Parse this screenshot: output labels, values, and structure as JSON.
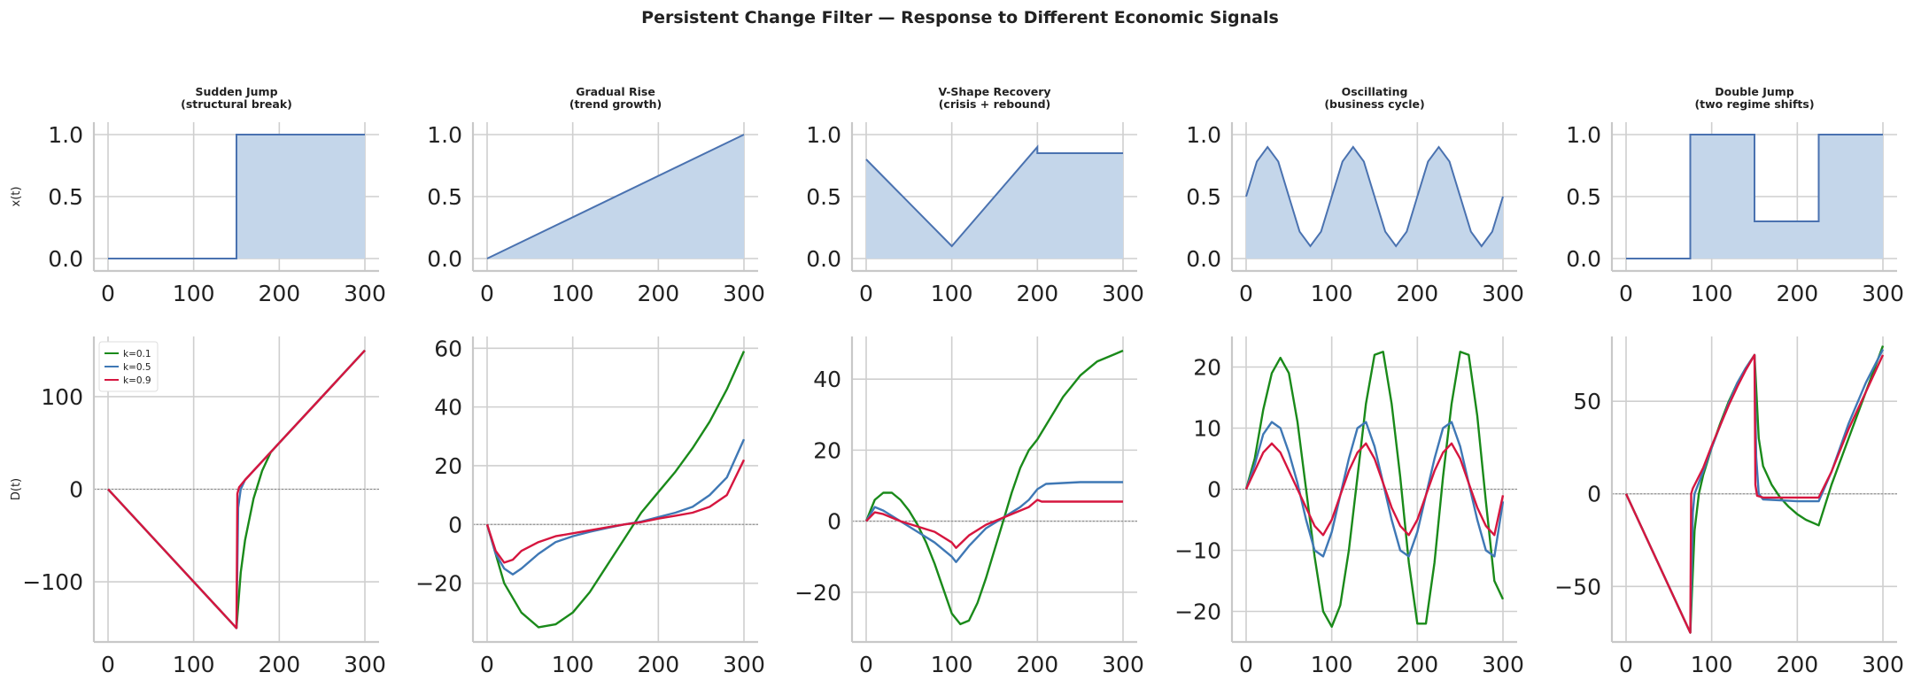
{
  "title": "Persistent Change Filter — Response to Different Economic Signals",
  "colors": {
    "signal_line": "#4a72b0",
    "signal_fill": "#c4d6ea",
    "k01": "#1a8a1a",
    "k05": "#3f78b5",
    "k09": "#d6163f",
    "grid": "#cfcfcf",
    "zero": "#888888"
  },
  "chart_data": [
    {
      "type": "area",
      "row": 0,
      "col": 0,
      "title_lines": [
        "Sudden Jump",
        "(structural break)"
      ],
      "ylabel": "x(t)",
      "xlim": [
        0,
        300
      ],
      "ylim": [
        -0.1,
        1.1
      ],
      "xticks": [
        0,
        100,
        200,
        300
      ],
      "yticks": [
        "0.0",
        "0.5",
        "1.0"
      ],
      "ytick_values": [
        0,
        0.5,
        1
      ],
      "series": [
        {
          "x": [
            0,
            150,
            150,
            300
          ],
          "y": [
            0,
            0,
            1,
            1
          ]
        }
      ]
    },
    {
      "type": "area",
      "row": 0,
      "col": 1,
      "title_lines": [
        "Gradual Rise",
        "(trend growth)"
      ],
      "ylabel": "",
      "xlim": [
        0,
        300
      ],
      "ylim": [
        -0.1,
        1.1
      ],
      "xticks": [
        0,
        100,
        200,
        300
      ],
      "yticks": [
        "0.0",
        "0.5",
        "1.0"
      ],
      "ytick_values": [
        0,
        0.5,
        1
      ],
      "series": [
        {
          "x": [
            0,
            300
          ],
          "y": [
            0,
            1
          ]
        }
      ]
    },
    {
      "type": "area",
      "row": 0,
      "col": 2,
      "title_lines": [
        "V-Shape Recovery",
        "(crisis + rebound)"
      ],
      "ylabel": "",
      "xlim": [
        0,
        300
      ],
      "ylim": [
        -0.1,
        1.1
      ],
      "xticks": [
        0,
        100,
        200,
        300
      ],
      "yticks": [
        "0.0",
        "0.5",
        "1.0"
      ],
      "ytick_values": [
        0,
        0.5,
        1
      ],
      "series": [
        {
          "x": [
            0,
            100,
            200,
            200,
            300
          ],
          "y": [
            0.8,
            0.1,
            0.9,
            0.85,
            0.85
          ]
        }
      ]
    },
    {
      "type": "area",
      "row": 0,
      "col": 3,
      "title_lines": [
        "Oscillating",
        "(business cycle)"
      ],
      "ylabel": "",
      "xlim": [
        0,
        300
      ],
      "ylim": [
        -0.1,
        1.1
      ],
      "xticks": [
        0,
        100,
        200,
        300
      ],
      "yticks": [
        "0.0",
        "0.5",
        "1.0"
      ],
      "ytick_values": [
        0,
        0.5,
        1
      ],
      "series": [
        {
          "x": [
            0,
            12.5,
            25,
            37.5,
            50,
            62.5,
            75,
            87.5,
            100,
            112.5,
            125,
            137.5,
            150,
            162.5,
            175,
            187.5,
            200,
            212.5,
            225,
            237.5,
            250,
            262.5,
            275,
            287.5,
            300
          ],
          "y": [
            0.5,
            0.783,
            0.9,
            0.783,
            0.5,
            0.217,
            0.1,
            0.217,
            0.5,
            0.783,
            0.9,
            0.783,
            0.5,
            0.217,
            0.1,
            0.217,
            0.5,
            0.783,
            0.9,
            0.783,
            0.5,
            0.217,
            0.1,
            0.217,
            0.5
          ]
        }
      ]
    },
    {
      "type": "area",
      "row": 0,
      "col": 4,
      "title_lines": [
        "Double Jump",
        "(two regime shifts)"
      ],
      "ylabel": "",
      "xlim": [
        0,
        300
      ],
      "ylim": [
        -0.1,
        1.1
      ],
      "xticks": [
        0,
        100,
        200,
        300
      ],
      "yticks": [
        "0.0",
        "0.5",
        "1.0"
      ],
      "ytick_values": [
        0,
        0.5,
        1
      ],
      "series": [
        {
          "x": [
            0,
            75,
            75,
            150,
            150,
            225,
            225,
            300
          ],
          "y": [
            0,
            0,
            1,
            1,
            0.3,
            0.3,
            1,
            1
          ]
        }
      ]
    },
    {
      "type": "line",
      "row": 1,
      "col": 0,
      "ylabel": "D(t)",
      "xlim": [
        0,
        300
      ],
      "ylim": [
        -165,
        165
      ],
      "xticks": [
        0,
        100,
        200,
        300
      ],
      "yticks": [
        "−100",
        "0",
        "100"
      ],
      "ytick_values": [
        -100,
        0,
        100
      ],
      "legend": {
        "placement": "upper-left",
        "entries": [
          "k=0.1",
          "k=0.5",
          "k=0.9"
        ]
      },
      "series": [
        {
          "name": "k=0.1",
          "x": [
            0,
            150,
            150,
            155,
            160,
            170,
            180,
            190,
            200,
            250,
            300
          ],
          "y": [
            0,
            -150,
            -150,
            -90,
            -55,
            -10,
            20,
            40,
            50,
            100,
            150
          ]
        },
        {
          "name": "k=0.5",
          "x": [
            0,
            150,
            150,
            152,
            155,
            160,
            200,
            250,
            300
          ],
          "y": [
            0,
            -150,
            -150,
            -20,
            0,
            10,
            50,
            100,
            150
          ]
        },
        {
          "name": "k=0.9",
          "x": [
            0,
            150,
            150,
            151,
            153,
            160,
            200,
            250,
            300
          ],
          "y": [
            0,
            -150,
            -150,
            -5,
            2,
            10,
            50,
            100,
            150
          ]
        }
      ]
    },
    {
      "type": "line",
      "row": 1,
      "col": 1,
      "ylabel": "",
      "xlim": [
        0,
        300
      ],
      "ylim": [
        -40,
        64
      ],
      "xticks": [
        0,
        100,
        200,
        300
      ],
      "yticks": [
        "−20",
        "0",
        "20",
        "40",
        "60"
      ],
      "ytick_values": [
        -20,
        0,
        20,
        40,
        60
      ],
      "series": [
        {
          "name": "k=0.1",
          "x": [
            0,
            20,
            40,
            60,
            80,
            100,
            120,
            140,
            160,
            180,
            200,
            220,
            240,
            260,
            280,
            300
          ],
          "y": [
            0,
            -20,
            -30,
            -35,
            -34,
            -30,
            -23,
            -14,
            -5,
            4,
            11,
            18,
            26,
            35,
            46,
            59
          ]
        },
        {
          "name": "k=0.5",
          "x": [
            0,
            10,
            20,
            30,
            40,
            60,
            80,
            100,
            120,
            140,
            160,
            180,
            200,
            220,
            240,
            260,
            280,
            300
          ],
          "y": [
            0,
            -10,
            -15,
            -17,
            -15,
            -10,
            -6,
            -4,
            -2.5,
            -1.2,
            0,
            1,
            2.5,
            4,
            6,
            10,
            16,
            29
          ]
        },
        {
          "name": "k=0.9",
          "x": [
            0,
            10,
            20,
            30,
            40,
            60,
            80,
            100,
            120,
            140,
            160,
            180,
            200,
            220,
            240,
            260,
            280,
            300
          ],
          "y": [
            0,
            -9,
            -13,
            -12,
            -9,
            -6,
            -4,
            -3,
            -2,
            -1,
            0,
            0.8,
            2,
            3,
            4,
            6,
            10,
            22
          ]
        }
      ]
    },
    {
      "type": "line",
      "row": 1,
      "col": 2,
      "ylabel": "",
      "xlim": [
        0,
        300
      ],
      "ylim": [
        -34,
        52
      ],
      "xticks": [
        0,
        100,
        200,
        300
      ],
      "yticks": [
        "−20",
        "0",
        "20",
        "40"
      ],
      "ytick_values": [
        -20,
        0,
        20,
        40
      ],
      "series": [
        {
          "name": "k=0.1",
          "x": [
            0,
            10,
            20,
            30,
            40,
            50,
            60,
            70,
            80,
            90,
            100,
            110,
            120,
            130,
            140,
            150,
            160,
            170,
            180,
            190,
            200,
            210,
            220,
            230,
            240,
            250,
            260,
            270,
            280,
            290,
            300
          ],
          "y": [
            0,
            6,
            8,
            8,
            6,
            3,
            -1,
            -6,
            -12,
            -19,
            -26,
            -29,
            -28,
            -23,
            -16,
            -8,
            0,
            8,
            15,
            20,
            23,
            27,
            31,
            35,
            38,
            41,
            43,
            45,
            46,
            47,
            48
          ]
        },
        {
          "name": "k=0.5",
          "x": [
            0,
            10,
            20,
            40,
            60,
            80,
            100,
            105,
            120,
            140,
            160,
            180,
            190,
            200,
            210,
            250,
            300
          ],
          "y": [
            0,
            4,
            3,
            0,
            -3,
            -6,
            -10,
            -11.5,
            -7,
            -2,
            1,
            4,
            6,
            9,
            10.5,
            11,
            11
          ]
        },
        {
          "name": "k=0.9",
          "x": [
            0,
            10,
            20,
            40,
            60,
            80,
            100,
            105,
            120,
            140,
            160,
            180,
            190,
            200,
            205,
            250,
            300
          ],
          "y": [
            0,
            2.5,
            2,
            0,
            -1.5,
            -3,
            -6,
            -7.5,
            -4,
            -1,
            1,
            3,
            4,
            6,
            5.5,
            5.5,
            5.5
          ]
        }
      ]
    },
    {
      "type": "line",
      "row": 1,
      "col": 3,
      "ylabel": "",
      "xlim": [
        0,
        300
      ],
      "ylim": [
        -25,
        25
      ],
      "xticks": [
        0,
        100,
        200,
        300
      ],
      "yticks": [
        "−20",
        "−10",
        "0",
        "10",
        "20"
      ],
      "ytick_values": [
        -20,
        -10,
        0,
        10,
        20
      ],
      "series": [
        {
          "name": "k=0.1",
          "x": [
            0,
            10,
            20,
            30,
            40,
            50,
            60,
            70,
            80,
            90,
            100,
            110,
            120,
            130,
            140,
            150,
            160,
            170,
            180,
            190,
            200,
            210,
            220,
            230,
            240,
            250,
            260,
            270,
            280,
            290,
            300
          ],
          "y": [
            0,
            5,
            13,
            19,
            21.5,
            19,
            11,
            0,
            -11,
            -20,
            -22.5,
            -19,
            -10,
            2,
            14,
            22,
            22.5,
            14,
            2,
            -12,
            -22,
            -22,
            -12,
            2,
            14,
            22.5,
            22,
            12,
            -2,
            -15,
            -18
          ]
        },
        {
          "name": "k=0.5",
          "x": [
            0,
            10,
            20,
            30,
            40,
            50,
            60,
            70,
            80,
            90,
            100,
            110,
            120,
            130,
            140,
            150,
            160,
            170,
            180,
            190,
            200,
            210,
            220,
            230,
            240,
            250,
            260,
            270,
            280,
            290,
            300
          ],
          "y": [
            0,
            4,
            9,
            11,
            10,
            6,
            1,
            -5,
            -10,
            -11,
            -7,
            -1,
            5,
            10,
            11,
            7,
            1,
            -5,
            -10,
            -11,
            -7,
            -1,
            5,
            10,
            11,
            7,
            1,
            -5,
            -10,
            -11,
            -2
          ]
        },
        {
          "name": "k=0.9",
          "x": [
            0,
            10,
            20,
            30,
            40,
            50,
            60,
            70,
            80,
            90,
            100,
            110,
            120,
            130,
            140,
            150,
            160,
            170,
            180,
            190,
            200,
            210,
            220,
            230,
            240,
            250,
            260,
            270,
            280,
            290,
            300
          ],
          "y": [
            0,
            3,
            6,
            7.5,
            6,
            3,
            0,
            -3,
            -6,
            -7.5,
            -5,
            -1,
            3,
            6,
            7.5,
            5,
            1,
            -3,
            -6,
            -7.5,
            -5,
            -1,
            3,
            6,
            7.5,
            5,
            1,
            -3,
            -6,
            -7.5,
            -1
          ]
        }
      ]
    },
    {
      "type": "line",
      "row": 1,
      "col": 4,
      "ylabel": "",
      "xlim": [
        0,
        300
      ],
      "ylim": [
        -80,
        85
      ],
      "xticks": [
        0,
        100,
        200,
        300
      ],
      "yticks": [
        "−50",
        "0",
        "50"
      ],
      "ytick_values": [
        -50,
        0,
        50
      ],
      "series": [
        {
          "name": "k=0.1",
          "x": [
            0,
            75,
            75,
            80,
            85,
            90,
            100,
            110,
            120,
            130,
            140,
            150,
            150,
            155,
            160,
            170,
            180,
            190,
            200,
            210,
            220,
            225,
            225,
            240,
            260,
            280,
            300
          ],
          "y": [
            0,
            -75,
            -75,
            -20,
            0,
            10,
            25,
            38,
            50,
            60,
            68,
            75,
            75,
            30,
            15,
            5,
            -2,
            -7,
            -11,
            -14,
            -16,
            -17,
            -17,
            5,
            30,
            55,
            80
          ]
        },
        {
          "name": "k=0.5",
          "x": [
            0,
            75,
            75,
            78,
            80,
            90,
            100,
            110,
            120,
            130,
            140,
            150,
            150,
            152,
            155,
            160,
            200,
            225,
            225,
            240,
            260,
            280,
            300
          ],
          "y": [
            0,
            -75,
            -75,
            -10,
            0,
            12,
            25,
            37,
            49,
            60,
            68,
            75,
            75,
            20,
            0,
            -3,
            -4,
            -4,
            -4,
            12,
            38,
            60,
            78
          ]
        },
        {
          "name": "k=0.9",
          "x": [
            0,
            75,
            75,
            76,
            78,
            90,
            100,
            110,
            120,
            130,
            140,
            150,
            150,
            151,
            153,
            160,
            200,
            225,
            225,
            240,
            260,
            280,
            300
          ],
          "y": [
            0,
            -75,
            -75,
            0,
            3,
            14,
            26,
            37,
            48,
            58,
            67,
            75,
            75,
            5,
            -1,
            -2,
            -2,
            -2,
            -2,
            12,
            35,
            55,
            75
          ]
        }
      ]
    }
  ]
}
